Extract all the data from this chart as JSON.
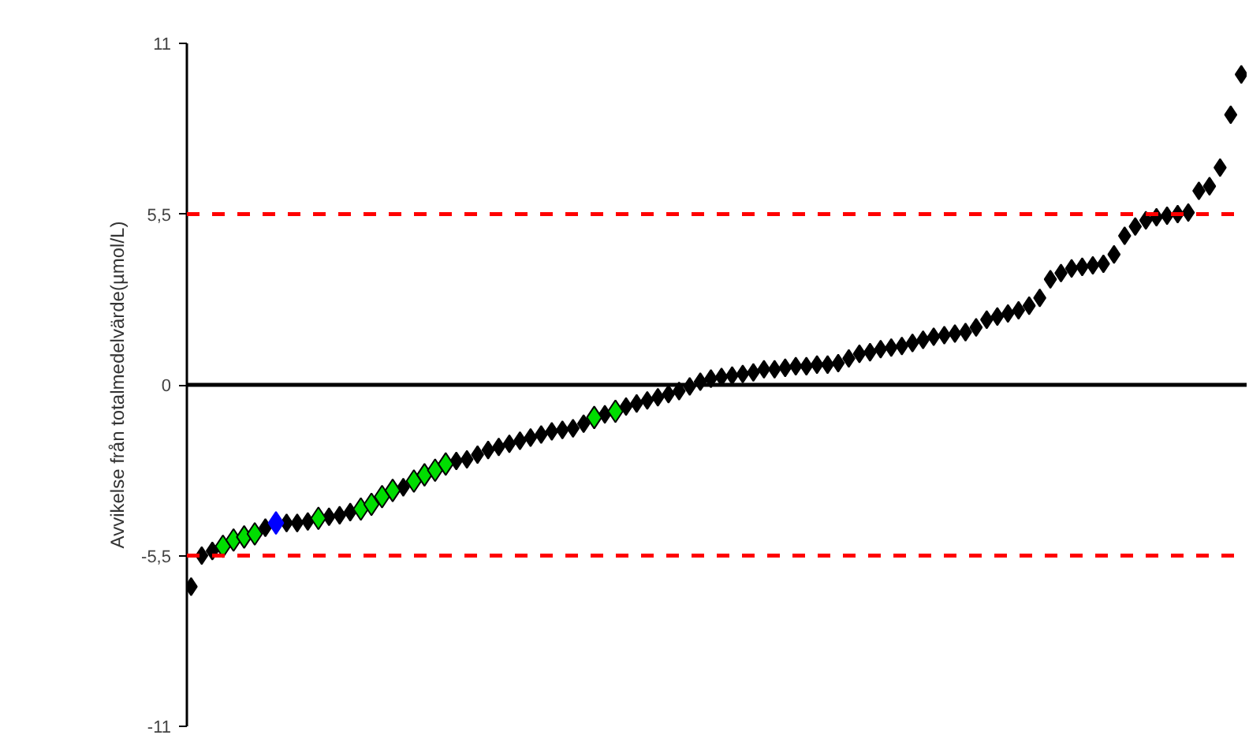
{
  "chart_data": {
    "type": "scatter",
    "ylabel": "Avvikelse från totalmedelvärde(µmol/L)",
    "categories": [
      null,
      null,
      null,
      null,
      null,
      null,
      null,
      null,
      null,
      null,
      null,
      null,
      null,
      null,
      null,
      null,
      null,
      null,
      null,
      null,
      null,
      null,
      null,
      null,
      null,
      null,
      null,
      null,
      null,
      null,
      null,
      null,
      null,
      null,
      null,
      null,
      null,
      null,
      null,
      null,
      null,
      null,
      null,
      null,
      null,
      null,
      null,
      null,
      null,
      null,
      null,
      null,
      null,
      null,
      null,
      null,
      null,
      null,
      null,
      null,
      null,
      null,
      null,
      null,
      null,
      null,
      null,
      null,
      null,
      null,
      null,
      null,
      null,
      null,
      null,
      null,
      null,
      null,
      null,
      null,
      null,
      null,
      null,
      null,
      null,
      null,
      null,
      null,
      null,
      null,
      null,
      null,
      null,
      null,
      null,
      null,
      null,
      null,
      null,
      null
    ],
    "series": [
      {
        "color": "#000000",
        "values": [
          -6.5,
          -5.5,
          -5.35,
          null,
          null,
          null,
          null,
          -4.6,
          null,
          -4.45,
          -4.45,
          -4.4,
          null,
          -4.25,
          -4.2,
          -4.1,
          null,
          null,
          null,
          null,
          -3.3,
          null,
          null,
          null,
          null,
          -2.45,
          -2.4,
          -2.25,
          -2.1,
          -2.0,
          -1.9,
          -1.8,
          -1.7,
          -1.6,
          -1.5,
          -1.45,
          -1.4,
          -1.25,
          null,
          -0.95,
          null,
          -0.7,
          -0.6,
          -0.5,
          -0.4,
          -0.3,
          -0.2,
          -0.05,
          0.1,
          0.2,
          0.25,
          0.3,
          0.35,
          0.4,
          0.5,
          0.5,
          0.55,
          0.6,
          0.6,
          0.65,
          0.65,
          0.7,
          0.85,
          1.0,
          1.05,
          1.15,
          1.2,
          1.25,
          1.35,
          1.45,
          1.55,
          1.6,
          1.65,
          1.7,
          1.85,
          2.1,
          2.2,
          2.3,
          2.4,
          2.55,
          2.8,
          3.4,
          3.6,
          3.75,
          3.8,
          3.85,
          3.9,
          4.2,
          4.8,
          5.1,
          5.3,
          5.4,
          5.45,
          5.5,
          5.55,
          6.25,
          6.4,
          7.0,
          8.7,
          10.0
        ]
      },
      {
        "color": "#00dd00",
        "values": [
          null,
          null,
          null,
          -5.2,
          -5.0,
          -4.9,
          -4.8,
          null,
          null,
          null,
          null,
          null,
          -4.3,
          null,
          null,
          null,
          -4.0,
          -3.85,
          -3.6,
          -3.4,
          null,
          -3.1,
          -2.9,
          -2.75,
          -2.55,
          null,
          null,
          null,
          null,
          null,
          null,
          null,
          null,
          null,
          null,
          null,
          null,
          null,
          -1.05,
          null,
          -0.85,
          null,
          null,
          null,
          null,
          null,
          null,
          null,
          null,
          null,
          null,
          null,
          null,
          null,
          null,
          null,
          null,
          null,
          null,
          null,
          null,
          null,
          null,
          null,
          null,
          null,
          null,
          null,
          null,
          null,
          null,
          null,
          null,
          null,
          null,
          null,
          null,
          null,
          null,
          null,
          null,
          null,
          null,
          null,
          null,
          null,
          null,
          null,
          null,
          null,
          null,
          null,
          null,
          null,
          null,
          null,
          null,
          null,
          null,
          null
        ]
      },
      {
        "color": "#0000ff",
        "values": [
          null,
          null,
          null,
          null,
          null,
          null,
          null,
          null,
          -4.45,
          null,
          null,
          null,
          null,
          null,
          null,
          null,
          null,
          null,
          null,
          null,
          null,
          null,
          null,
          null,
          null,
          null,
          null,
          null,
          null,
          null,
          null,
          null,
          null,
          null,
          null,
          null,
          null,
          null,
          null,
          null,
          null,
          null,
          null,
          null,
          null,
          null,
          null,
          null,
          null,
          null,
          null,
          null,
          null,
          null,
          null,
          null,
          null,
          null,
          null,
          null,
          null,
          null,
          null,
          null,
          null,
          null,
          null,
          null,
          null,
          null,
          null,
          null,
          null,
          null,
          null,
          null,
          null,
          null,
          null,
          null,
          null,
          null,
          null,
          null,
          null,
          null,
          null,
          null,
          null,
          null,
          null,
          null,
          null,
          null,
          null,
          null,
          null,
          null,
          null,
          null
        ]
      }
    ],
    "ylim": [
      -11,
      11
    ],
    "yticks": [
      11,
      {
        "value": 5.5,
        "label": "5,5"
      },
      0,
      {
        "value": -5.5,
        "label": "-5,5"
      },
      -11
    ],
    "ref_lines": [
      {
        "axis": "y",
        "value": 5.5,
        "color": "#ff0000",
        "line_style": "dashed"
      },
      {
        "axis": "y",
        "value": -5.5,
        "color": "#ff0000",
        "line_style": "dashed"
      },
      {
        "axis": "y",
        "value": 0,
        "color": "#000000",
        "line_style": "solid"
      }
    ],
    "marker": "diamond",
    "grid": false,
    "tick_labels": "y"
  }
}
